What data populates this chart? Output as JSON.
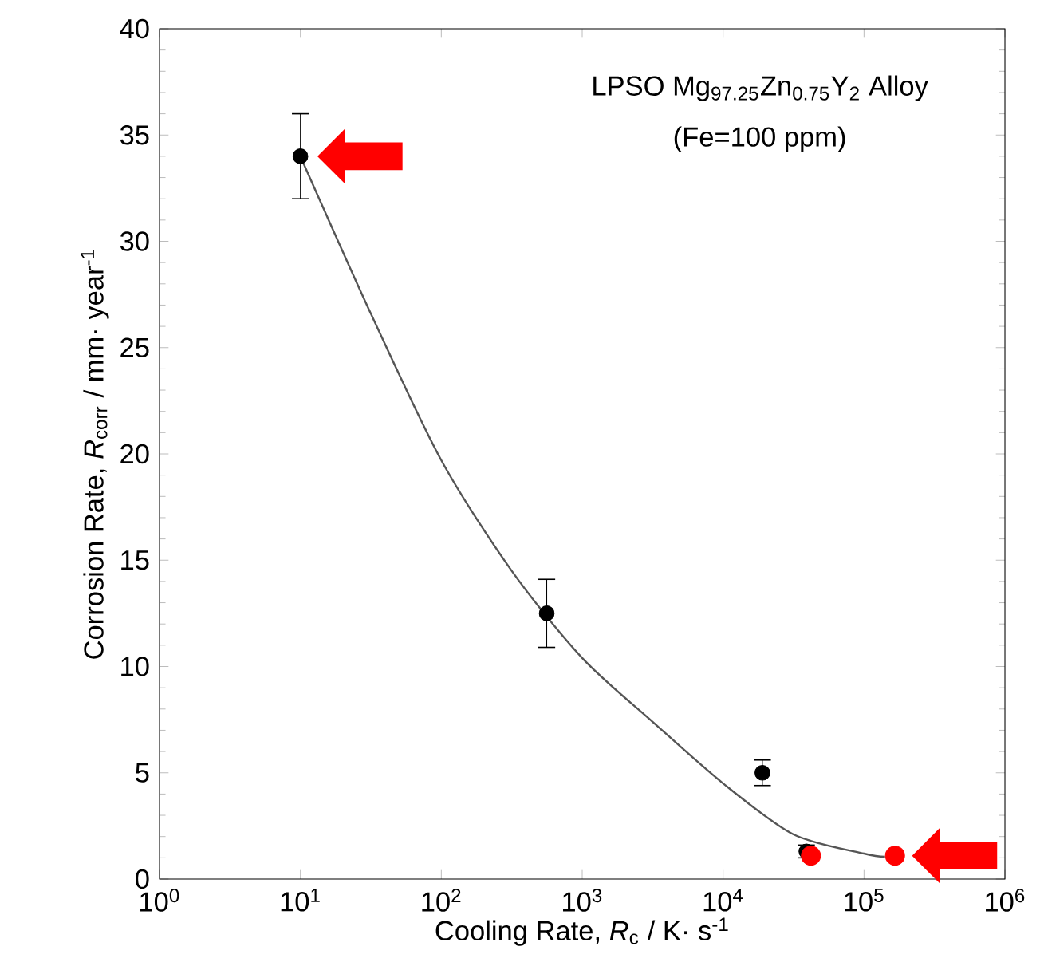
{
  "chart_data": {
    "type": "scatter",
    "xlabel": "Cooling Rate, *R*$_{c}$ / K· s$^{-1}$",
    "ylabel": "Corrosion Rate, *R*$_{corr}$ / mm· year$^{-1}$",
    "annotations": [
      "LPSO Mg$_{97.25}$Zn$_{0.75}$Y$_{2}$ Alloy",
      "(Fe=100 ppm)"
    ],
    "log": "x",
    "xlim": [
      1,
      1000000
    ],
    "ylim": [
      0,
      40
    ],
    "xticks": [
      {
        "value": 1,
        "label": "10$^{0}$"
      },
      {
        "value": 10,
        "label": "10$^{1}$"
      },
      {
        "value": 100,
        "label": "10$^{2}$"
      },
      {
        "value": 1000,
        "label": "10$^{3}$"
      },
      {
        "value": 10000,
        "label": "10$^{4}$"
      },
      {
        "value": 100000,
        "label": "10$^{5}$"
      },
      {
        "value": 1000000,
        "label": "10$^{6}$"
      }
    ],
    "yticks": [
      0,
      5,
      10,
      15,
      20,
      25,
      30,
      35,
      40
    ],
    "series": [
      {
        "type": "line",
        "marker": "none",
        "color": "#555555",
        "x": [
          10,
          31.6,
          100,
          316,
          1000,
          3160,
          10000,
          31600,
          100000,
          141000
        ],
        "values": [
          34,
          26.6,
          19.7,
          14.5,
          10.4,
          7.4,
          4.5,
          2.1,
          1.2,
          1.05
        ]
      },
      {
        "marker": "circle",
        "color": "#000000",
        "x": [
          10,
          560,
          19000,
          39000
        ],
        "values": [
          34,
          12.5,
          5.0,
          1.3
        ],
        "errors": [
          2,
          1.6,
          0.6,
          0.3
        ]
      },
      {
        "marker": "circle",
        "color": "#ff0000",
        "x": [
          42000,
          166000
        ],
        "values": [
          1.1,
          1.1
        ]
      }
    ]
  }
}
